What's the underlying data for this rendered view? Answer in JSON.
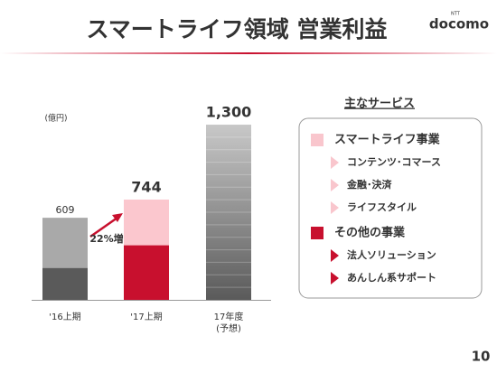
{
  "chart_data": {
    "type": "stacked_bar",
    "title": "スマートライフ領域 営業利益",
    "logo": "docomo",
    "logo_sup": "NTT",
    "page_number": "10",
    "unit_label": "(億円)",
    "categories": [
      "'16上期",
      "'17上期",
      "17年度\n(予想)"
    ],
    "ylim": [
      0,
      1300
    ],
    "series": [
      {
        "name": "その他の事業",
        "color": "#c8102e",
        "colors": [
          "#5a5a5a",
          "#c8102e",
          null
        ],
        "values": [
          237,
          405,
          null
        ]
      },
      {
        "name": "スマートライフ事業",
        "color": "#f9c6cd",
        "colors": [
          "#a9a9a9",
          "#fbc7ce",
          null
        ],
        "values": [
          372,
          339,
          null
        ]
      }
    ],
    "totals": {
      "values": [
        609,
        744,
        1300
      ],
      "value_labels": [
        "609",
        "744",
        "1,300"
      ],
      "colors": [
        "#333333",
        "#c8102e",
        "#333333"
      ]
    },
    "annotation": "22%増",
    "legend": {
      "title": "主なサービス",
      "groups": [
        {
          "series": 1,
          "items": [
            "コンテンツ･コマース",
            "金融･決済",
            "ライフスタイル"
          ]
        },
        {
          "series": 0,
          "items": [
            "法人ソリューション",
            "あんしん系サポート"
          ]
        }
      ]
    }
  }
}
